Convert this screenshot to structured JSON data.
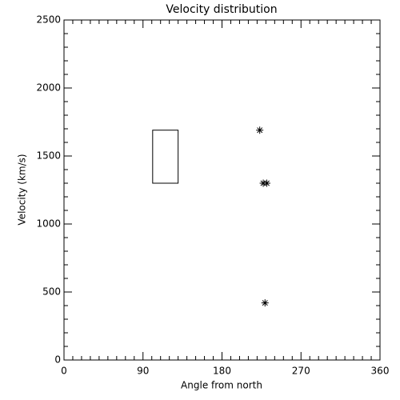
{
  "chart_data": {
    "type": "scatter",
    "title": "Velocity distribution",
    "x_label": "Angle from north",
    "y_label": "Velocity (km/s)",
    "x": [
      223,
      227,
      231,
      229
    ],
    "values": [
      1690,
      1300,
      1300,
      420
    ],
    "color": "#000000",
    "range_box": {
      "x": [
        101,
        130
      ],
      "y": [
        1300,
        1690
      ]
    },
    "xlim": [
      0,
      360
    ],
    "xticks": [
      0,
      90,
      180,
      270,
      360
    ],
    "ylim": [
      0,
      2500
    ],
    "yticks": [
      0,
      500,
      1000,
      1500,
      2000,
      2500
    ]
  }
}
